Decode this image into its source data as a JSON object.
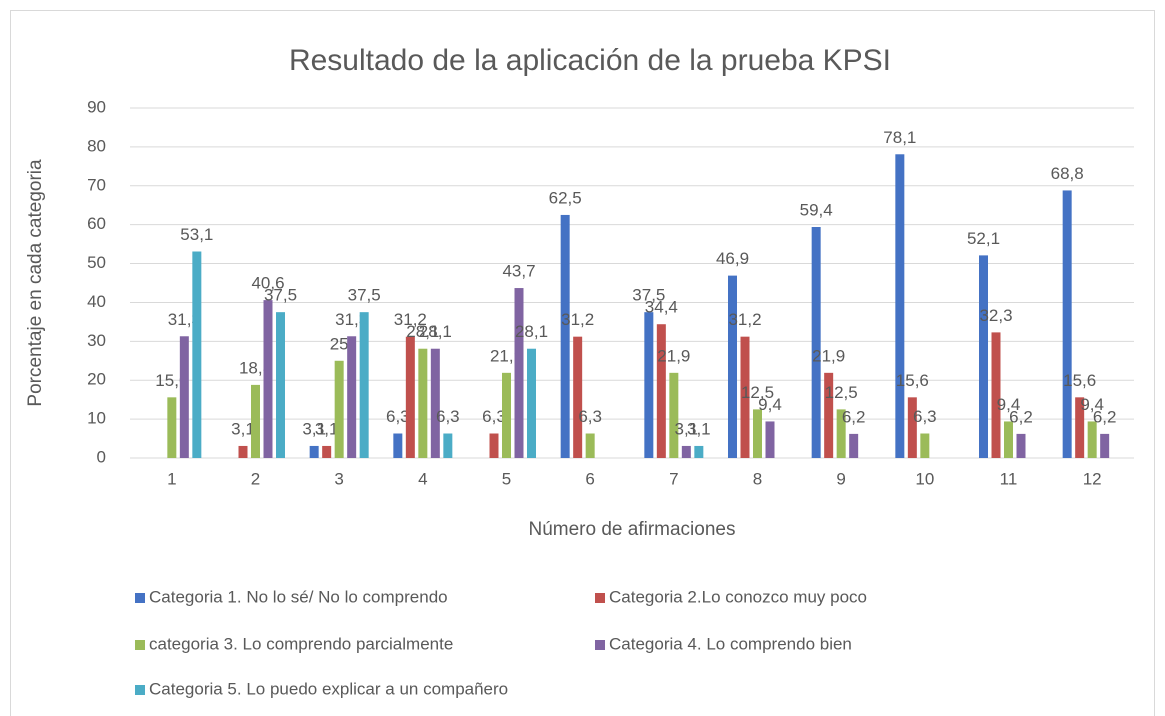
{
  "chart_data": {
    "type": "bar",
    "title": "Resultado de la aplicación de la prueba KPSI",
    "x_label": "Número de afirmaciones",
    "y_label": "Porcentaje en cada categoria",
    "categories": [
      "1",
      "2",
      "3",
      "4",
      "5",
      "6",
      "7",
      "8",
      "9",
      "10",
      "11",
      "12"
    ],
    "ylim": [
      0,
      90
    ],
    "yticks": [
      0,
      10,
      20,
      30,
      40,
      50,
      60,
      70,
      80,
      90
    ],
    "grid": true,
    "legend": "bottom",
    "series": [
      {
        "name": "Categoria 1. No lo sé/ No lo comprendo",
        "color": "#4472c4",
        "values": [
          null,
          null,
          3.1,
          6.3,
          null,
          62.5,
          37.5,
          46.9,
          59.4,
          78.1,
          52.1,
          68.8
        ],
        "value_labels": [
          null,
          null,
          "3,1",
          "6,3",
          null,
          "62,5",
          "37,5",
          "46,9",
          "59,4",
          "78,1",
          "52,1",
          "68,8"
        ]
      },
      {
        "name": "Categoria 2.Lo conozco muy poco",
        "color": "#c0504d",
        "values": [
          null,
          3.1,
          3.1,
          31.2,
          6.3,
          31.2,
          34.4,
          31.2,
          21.9,
          15.6,
          32.3,
          15.6
        ],
        "value_labels": [
          null,
          "3,1",
          "3,1",
          "31,2",
          "6,3",
          "31,2",
          "34,4",
          "31,2",
          "21,9",
          "15,6",
          "32,3",
          "15,6"
        ]
      },
      {
        "name": "categoria 3. Lo comprendo parcialmente",
        "color": "#9bbb59",
        "values": [
          15.6,
          18.8,
          25,
          28.1,
          21.9,
          6.3,
          21.9,
          12.5,
          12.5,
          6.3,
          9.4,
          9.4
        ],
        "value_labels": [
          "15,6",
          "18,8",
          "25",
          "28,1",
          "21,9",
          "6,3",
          "21,9",
          "12,5",
          "12,5",
          "6,3",
          "9,4",
          "9,4"
        ]
      },
      {
        "name": "Categoria 4. Lo comprendo bien",
        "color": "#8064a2",
        "values": [
          31.3,
          40.6,
          31.3,
          28.1,
          43.7,
          null,
          3.1,
          9.4,
          6.2,
          null,
          6.2,
          6.2
        ],
        "value_labels": [
          "31,3",
          "40,6",
          "31,3",
          "28,1",
          "43,7",
          null,
          "3,1",
          "9,4",
          "6,2",
          null,
          "6,2",
          "6,2"
        ]
      },
      {
        "name": "Categoria 5. Lo puedo explicar a un compañero",
        "color": "#4bacc6",
        "values": [
          53.1,
          37.5,
          37.5,
          6.3,
          28.1,
          null,
          3.1,
          null,
          null,
          null,
          null,
          null
        ],
        "value_labels": [
          "53,1",
          "37,5",
          "37,5",
          "6,3",
          "28,1",
          null,
          "3,1",
          null,
          null,
          null,
          null,
          null
        ]
      }
    ]
  }
}
